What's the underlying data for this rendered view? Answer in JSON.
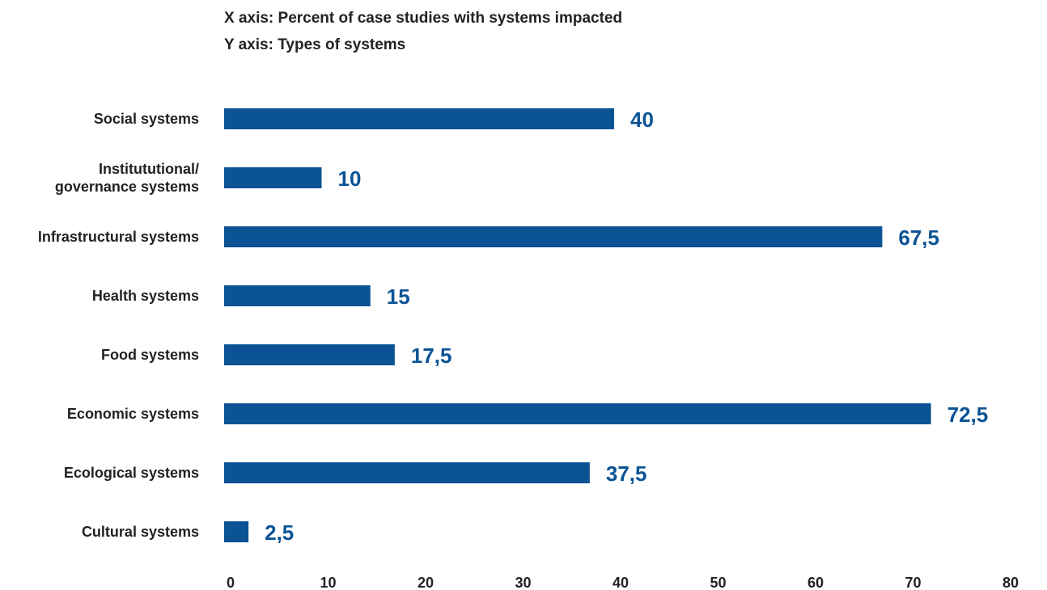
{
  "axis_notes": {
    "x": "X axis: Percent of case studies with systems impacted",
    "y": "Y axis: Types of systems"
  },
  "chart_data": {
    "type": "bar",
    "orientation": "horizontal",
    "categories": [
      [
        "Social systems"
      ],
      [
        "Institututional/",
        "governance systems"
      ],
      [
        "Infrastructural systems"
      ],
      [
        "Health systems"
      ],
      [
        "Food systems"
      ],
      [
        "Economic systems"
      ],
      [
        "Ecological systems"
      ],
      [
        "Cultural systems"
      ]
    ],
    "values": [
      40,
      10,
      67.5,
      15,
      17.5,
      72.5,
      37.5,
      2.5
    ],
    "value_labels": [
      "40",
      "10",
      "67,5",
      "15",
      "17,5",
      "72,5",
      "37,5",
      "2,5"
    ],
    "xlim": [
      0,
      80
    ],
    "xticks": [
      0,
      10,
      20,
      30,
      40,
      50,
      60,
      70,
      80
    ],
    "grid": false,
    "legend": "none",
    "bar_color": "#0b5394",
    "label_color": "#0b5394"
  }
}
